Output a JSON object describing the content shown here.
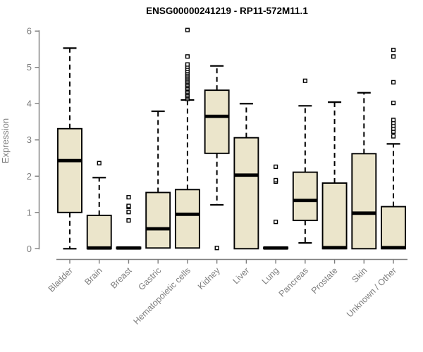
{
  "figure": {
    "title": "ENSG00000241219 - RP11-572M11.1"
  },
  "chart_data": {
    "type": "boxplot",
    "title": "ENSG00000241219 - RP11-572M11.1",
    "xlabel": "",
    "ylabel": "Expression",
    "ylim": [
      0,
      6
    ],
    "yticks": [
      0,
      1,
      2,
      3,
      4,
      5,
      6
    ],
    "grid": false,
    "legend": "none",
    "box_fill": "#EBE5CB",
    "box_border": "#000000",
    "median_color": "#000000",
    "axis_color": "#7E7E7E",
    "background": "#FFFFFF",
    "categories": [
      "Bladder",
      "Brain",
      "Breast",
      "Gastric",
      "Hematopoietic cells",
      "Kidney",
      "Liver",
      "Lung",
      "Pancreas",
      "Prostate",
      "Skin",
      "Unknown / Other"
    ],
    "series": [
      {
        "category": "Bladder",
        "whisker_low": 0,
        "q1": 1.0,
        "median": 2.43,
        "q3": 3.31,
        "whisker_high": 5.53,
        "outliers": []
      },
      {
        "category": "Brain",
        "whisker_low": 0,
        "q1": 0,
        "median": 0.02,
        "q3": 0.92,
        "whisker_high": 1.96,
        "outliers": [
          2.36
        ]
      },
      {
        "category": "Breast",
        "whisker_low": 0,
        "q1": 0,
        "median": 0.02,
        "q3": 0.04,
        "whisker_high": 0.06,
        "outliers": [
          0.78,
          1.01,
          1.15,
          1.18,
          1.42
        ]
      },
      {
        "category": "Gastric",
        "whisker_low": 0,
        "q1": 0.02,
        "median": 0.55,
        "q3": 1.55,
        "whisker_high": 3.79,
        "outliers": []
      },
      {
        "category": "Hematopoietic cells",
        "whisker_low": 0,
        "q1": 0.02,
        "median": 0.95,
        "q3": 1.63,
        "whisker_high": 4.1,
        "outliers": [
          4.13,
          4.17,
          4.21,
          4.25,
          4.29,
          4.33,
          4.37,
          4.41,
          4.45,
          4.49,
          4.53,
          4.57,
          4.61,
          4.65,
          4.69,
          4.73,
          4.77,
          4.81,
          4.86,
          4.91,
          4.96,
          5.02,
          5.08,
          5.3,
          6.03
        ]
      },
      {
        "category": "Kidney",
        "whisker_low": 1.21,
        "q1": 2.63,
        "median": 3.65,
        "q3": 4.37,
        "whisker_high": 5.04,
        "outliers": [
          0.02
        ]
      },
      {
        "category": "Liver",
        "whisker_low": 0,
        "q1": 0,
        "median": 2.03,
        "q3": 3.06,
        "whisker_high": 4.0,
        "outliers": []
      },
      {
        "category": "Lung",
        "whisker_low": 0,
        "q1": 0,
        "median": 0.02,
        "q3": 0.04,
        "whisker_high": 0.06,
        "outliers": [
          0.74,
          1.85,
          1.89,
          2.26
        ]
      },
      {
        "category": "Pancreas",
        "whisker_low": 0.16,
        "q1": 0.78,
        "median": 1.33,
        "q3": 2.11,
        "whisker_high": 3.94,
        "outliers": [
          4.63
        ]
      },
      {
        "category": "Prostate",
        "whisker_low": 0,
        "q1": 0,
        "median": 0.03,
        "q3": 1.81,
        "whisker_high": 4.04,
        "outliers": []
      },
      {
        "category": "Skin",
        "whisker_low": 0,
        "q1": 0,
        "median": 0.98,
        "q3": 2.62,
        "whisker_high": 4.3,
        "outliers": []
      },
      {
        "category": "Unknown / Other",
        "whisker_low": 0,
        "q1": 0,
        "median": 0.03,
        "q3": 1.16,
        "whisker_high": 2.89,
        "outliers": [
          3.1,
          3.23,
          3.31,
          3.39,
          3.47,
          3.55,
          4.02,
          4.59,
          5.3,
          5.48
        ]
      }
    ]
  }
}
